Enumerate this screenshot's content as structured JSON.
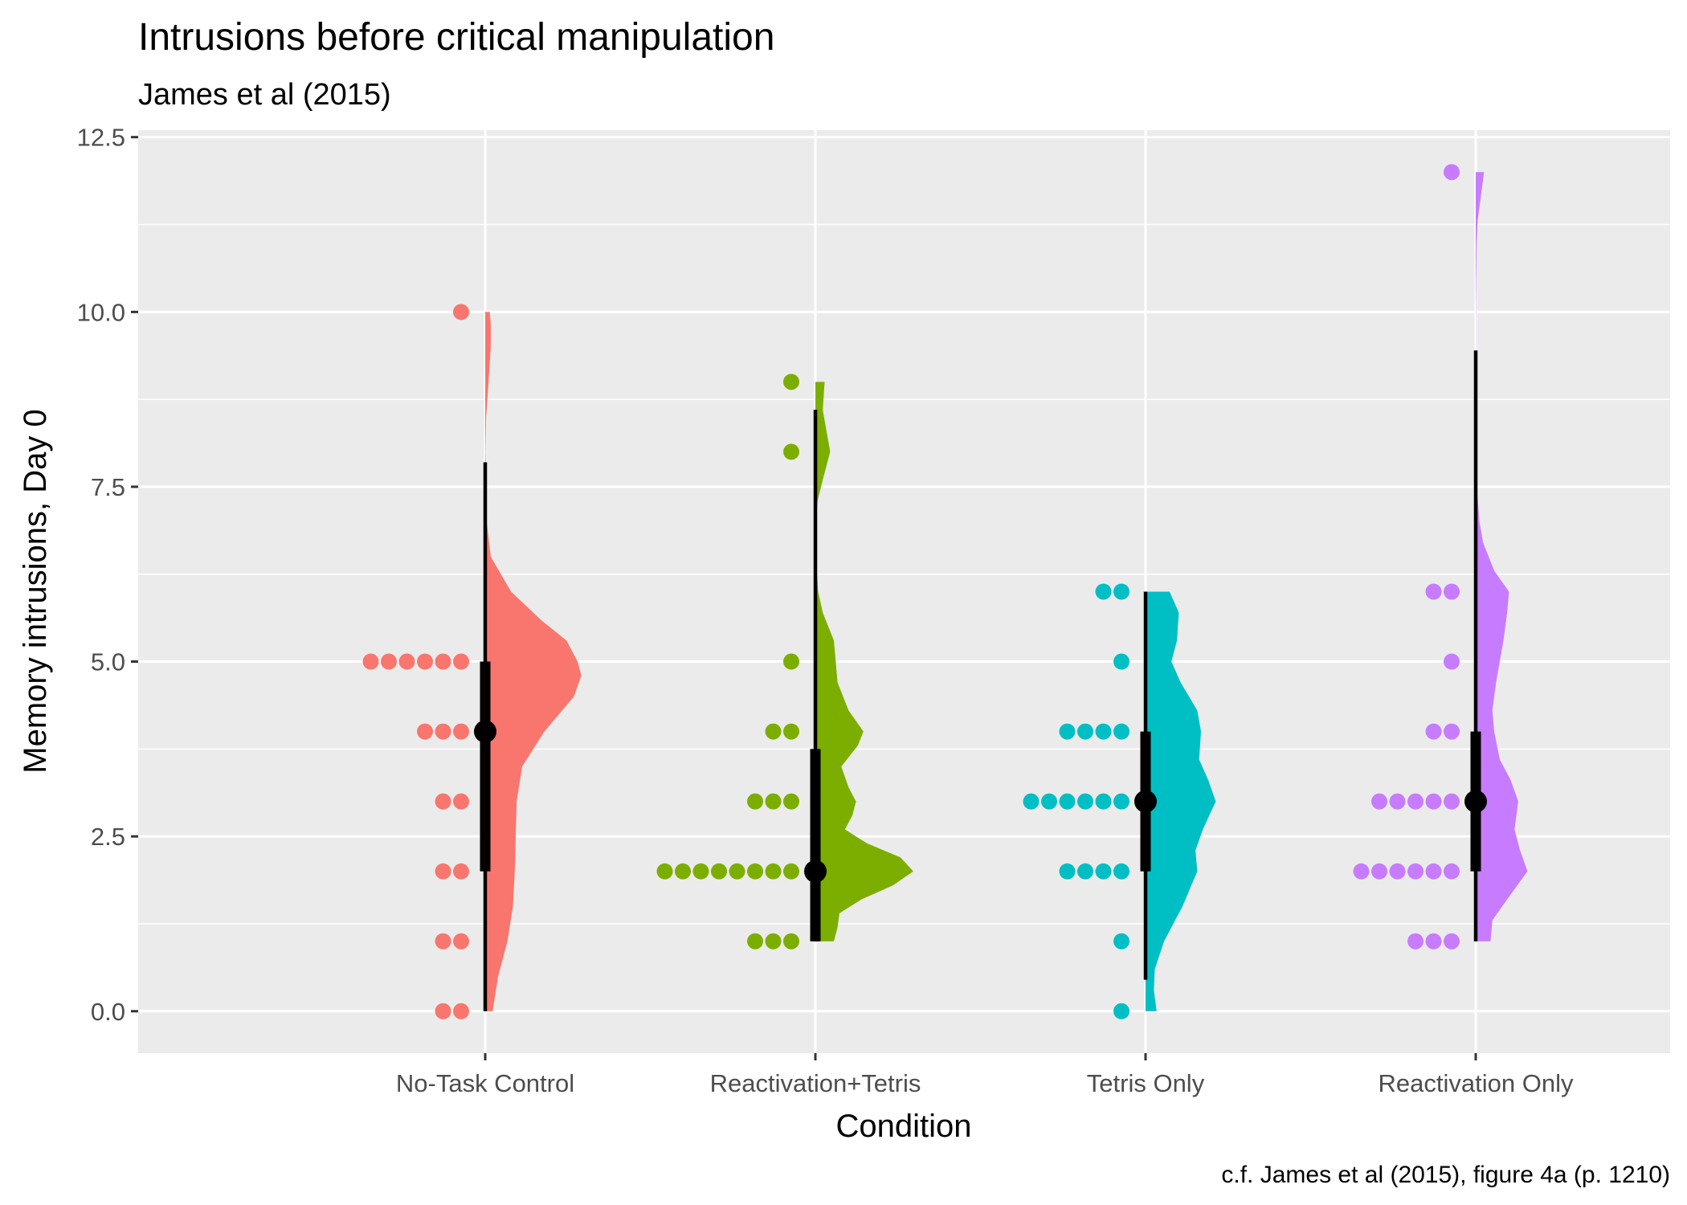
{
  "chart_data": {
    "type": "raincloud",
    "title": "Intrusions before critical manipulation",
    "subtitle": "James et al (2015)",
    "xlabel": "Condition",
    "ylabel": "Memory intrusions, Day 0",
    "caption": "c.f. James et al (2015), figure 4a (p. 1210)",
    "ylim": [
      -0.6,
      12.6
    ],
    "yticks": [
      "0.0",
      "2.5",
      "5.0",
      "7.5",
      "10.0",
      "12.5"
    ],
    "categories": [
      "No-Task Control",
      "Reactivation+Tetris",
      "Tetris Only",
      "Reactivation Only"
    ],
    "grid": true,
    "legend": "none",
    "series": [
      {
        "name": "No-Task Control",
        "color": "#F8766D",
        "points": [
          {
            "value": 0,
            "count": 2
          },
          {
            "value": 1,
            "count": 2
          },
          {
            "value": 2,
            "count": 2
          },
          {
            "value": 3,
            "count": 2
          },
          {
            "value": 4,
            "count": 3
          },
          {
            "value": 5,
            "count": 6
          },
          {
            "value": 10,
            "count": 1
          }
        ],
        "median": 4,
        "q1": 2,
        "q3": 5,
        "whisker_low": 0,
        "whisker_high": 7.85,
        "density": [
          [
            0,
            0.04
          ],
          [
            0.5,
            0.07
          ],
          [
            1,
            0.12
          ],
          [
            1.5,
            0.15
          ],
          [
            2,
            0.16
          ],
          [
            2.5,
            0.165
          ],
          [
            3,
            0.17
          ],
          [
            3.5,
            0.2
          ],
          [
            4,
            0.32
          ],
          [
            4.5,
            0.48
          ],
          [
            4.8,
            0.52
          ],
          [
            5,
            0.5
          ],
          [
            5.3,
            0.44
          ],
          [
            5.6,
            0.3
          ],
          [
            6,
            0.14
          ],
          [
            6.5,
            0.03
          ],
          [
            7,
            0.008
          ],
          [
            8,
            0.002
          ],
          [
            8.5,
            0.005
          ],
          [
            9,
            0.018
          ],
          [
            9.5,
            0.03
          ],
          [
            9.8,
            0.03
          ],
          [
            10,
            0.025
          ]
        ]
      },
      {
        "name": "Reactivation+Tetris",
        "color": "#7CAE00",
        "points": [
          {
            "value": 1,
            "count": 3
          },
          {
            "value": 2,
            "count": 8
          },
          {
            "value": 3,
            "count": 3
          },
          {
            "value": 4,
            "count": 2
          },
          {
            "value": 5,
            "count": 1
          },
          {
            "value": 8,
            "count": 1
          },
          {
            "value": 9,
            "count": 1
          }
        ],
        "median": 2,
        "q1": 1,
        "q3": 3.75,
        "whisker_low": 1,
        "whisker_high": 8.6,
        "density": [
          [
            1,
            0.1
          ],
          [
            1.2,
            0.12
          ],
          [
            1.4,
            0.13
          ],
          [
            1.6,
            0.25
          ],
          [
            1.8,
            0.42
          ],
          [
            2,
            0.53
          ],
          [
            2.2,
            0.46
          ],
          [
            2.4,
            0.28
          ],
          [
            2.6,
            0.16
          ],
          [
            2.8,
            0.2
          ],
          [
            3,
            0.22
          ],
          [
            3.2,
            0.18
          ],
          [
            3.5,
            0.14
          ],
          [
            3.8,
            0.23
          ],
          [
            4,
            0.26
          ],
          [
            4.3,
            0.18
          ],
          [
            4.7,
            0.12
          ],
          [
            5,
            0.11
          ],
          [
            5.3,
            0.1
          ],
          [
            5.7,
            0.04
          ],
          [
            6,
            0.015
          ],
          [
            6.5,
            0.003
          ],
          [
            7,
            0.005
          ],
          [
            7.3,
            0.012
          ],
          [
            7.6,
            0.04
          ],
          [
            8,
            0.08
          ],
          [
            8.3,
            0.06
          ],
          [
            8.6,
            0.04
          ],
          [
            9,
            0.05
          ]
        ]
      },
      {
        "name": "Tetris Only",
        "color": "#00BFC4",
        "points": [
          {
            "value": 0,
            "count": 1
          },
          {
            "value": 1,
            "count": 1
          },
          {
            "value": 2,
            "count": 4
          },
          {
            "value": 3,
            "count": 6
          },
          {
            "value": 4,
            "count": 4
          },
          {
            "value": 5,
            "count": 1
          },
          {
            "value": 6,
            "count": 2
          }
        ],
        "median": 3,
        "q1": 2,
        "q3": 4,
        "whisker_low": 0.45,
        "whisker_high": 6,
        "density": [
          [
            0,
            0.06
          ],
          [
            0.3,
            0.045
          ],
          [
            0.6,
            0.05
          ],
          [
            1,
            0.1
          ],
          [
            1.5,
            0.2
          ],
          [
            2,
            0.28
          ],
          [
            2.3,
            0.27
          ],
          [
            2.6,
            0.31
          ],
          [
            3,
            0.38
          ],
          [
            3.3,
            0.34
          ],
          [
            3.6,
            0.29
          ],
          [
            4,
            0.3
          ],
          [
            4.3,
            0.28
          ],
          [
            4.7,
            0.19
          ],
          [
            5,
            0.14
          ],
          [
            5.3,
            0.17
          ],
          [
            5.7,
            0.18
          ],
          [
            6,
            0.13
          ]
        ]
      },
      {
        "name": "Reactivation Only",
        "color": "#C77CFF",
        "points": [
          {
            "value": 1,
            "count": 3
          },
          {
            "value": 2,
            "count": 6
          },
          {
            "value": 3,
            "count": 5
          },
          {
            "value": 4,
            "count": 2
          },
          {
            "value": 5,
            "count": 1
          },
          {
            "value": 6,
            "count": 2
          },
          {
            "value": 12,
            "count": 1
          }
        ],
        "median": 3,
        "q1": 2,
        "q3": 4,
        "whisker_low": 1,
        "whisker_high": 9.45,
        "density": [
          [
            1,
            0.08
          ],
          [
            1.3,
            0.09
          ],
          [
            1.6,
            0.17
          ],
          [
            2,
            0.28
          ],
          [
            2.3,
            0.24
          ],
          [
            2.6,
            0.21
          ],
          [
            3,
            0.23
          ],
          [
            3.3,
            0.19
          ],
          [
            3.6,
            0.13
          ],
          [
            4,
            0.1
          ],
          [
            4.3,
            0.09
          ],
          [
            4.7,
            0.11
          ],
          [
            5,
            0.13
          ],
          [
            5.3,
            0.15
          ],
          [
            5.7,
            0.17
          ],
          [
            6,
            0.18
          ],
          [
            6.3,
            0.1
          ],
          [
            6.7,
            0.04
          ],
          [
            7,
            0.02
          ],
          [
            7.5,
            0.006
          ],
          [
            8,
            0.002
          ],
          [
            9,
            0.001
          ],
          [
            10,
            0.001
          ],
          [
            11,
            0.005
          ],
          [
            11.3,
            0.01
          ],
          [
            11.7,
            0.03
          ],
          [
            12,
            0.045
          ]
        ]
      }
    ]
  }
}
